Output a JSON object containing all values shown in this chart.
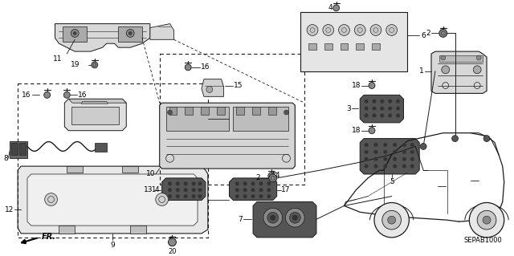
{
  "bg_color": "#ffffff",
  "fig_width": 6.4,
  "fig_height": 3.19,
  "dpi": 100,
  "diagram_code_id": "SEPAB1000",
  "lc": "#1a1a1a",
  "font_size": 6.5
}
